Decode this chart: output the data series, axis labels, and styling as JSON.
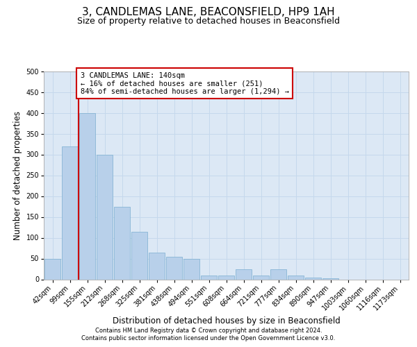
{
  "title": "3, CANDLEMAS LANE, BEACONSFIELD, HP9 1AH",
  "subtitle": "Size of property relative to detached houses in Beaconsfield",
  "xlabel": "Distribution of detached houses by size in Beaconsfield",
  "ylabel": "Number of detached properties",
  "footer_line1": "Contains HM Land Registry data © Crown copyright and database right 2024.",
  "footer_line2": "Contains public sector information licensed under the Open Government Licence v3.0.",
  "categories": [
    "42sqm",
    "99sqm",
    "155sqm",
    "212sqm",
    "268sqm",
    "325sqm",
    "381sqm",
    "438sqm",
    "494sqm",
    "551sqm",
    "608sqm",
    "664sqm",
    "721sqm",
    "777sqm",
    "834sqm",
    "890sqm",
    "947sqm",
    "1003sqm",
    "1060sqm",
    "1116sqm",
    "1173sqm"
  ],
  "values": [
    50,
    320,
    400,
    300,
    175,
    115,
    65,
    55,
    50,
    10,
    10,
    25,
    10,
    25,
    10,
    5,
    3,
    0,
    0,
    0,
    0
  ],
  "bar_color": "#b8d0ea",
  "bar_edge_color": "#7aaed0",
  "vline_x": 1.5,
  "vline_color": "#cc0000",
  "annotation_text": "3 CANDLEMAS LANE: 140sqm\n← 16% of detached houses are smaller (251)\n84% of semi-detached houses are larger (1,294) →",
  "annotation_box_facecolor": "#ffffff",
  "annotation_box_edgecolor": "#cc0000",
  "ylim": [
    0,
    500
  ],
  "yticks": [
    0,
    50,
    100,
    150,
    200,
    250,
    300,
    350,
    400,
    450,
    500
  ],
  "grid_color": "#c5d8ec",
  "plot_bg_color": "#dce8f5",
  "fig_bg_color": "#ffffff",
  "title_fontsize": 11,
  "subtitle_fontsize": 9,
  "xlabel_fontsize": 8.5,
  "ylabel_fontsize": 8.5,
  "tick_fontsize": 7,
  "footer_fontsize": 6,
  "annotation_fontsize": 7.5
}
